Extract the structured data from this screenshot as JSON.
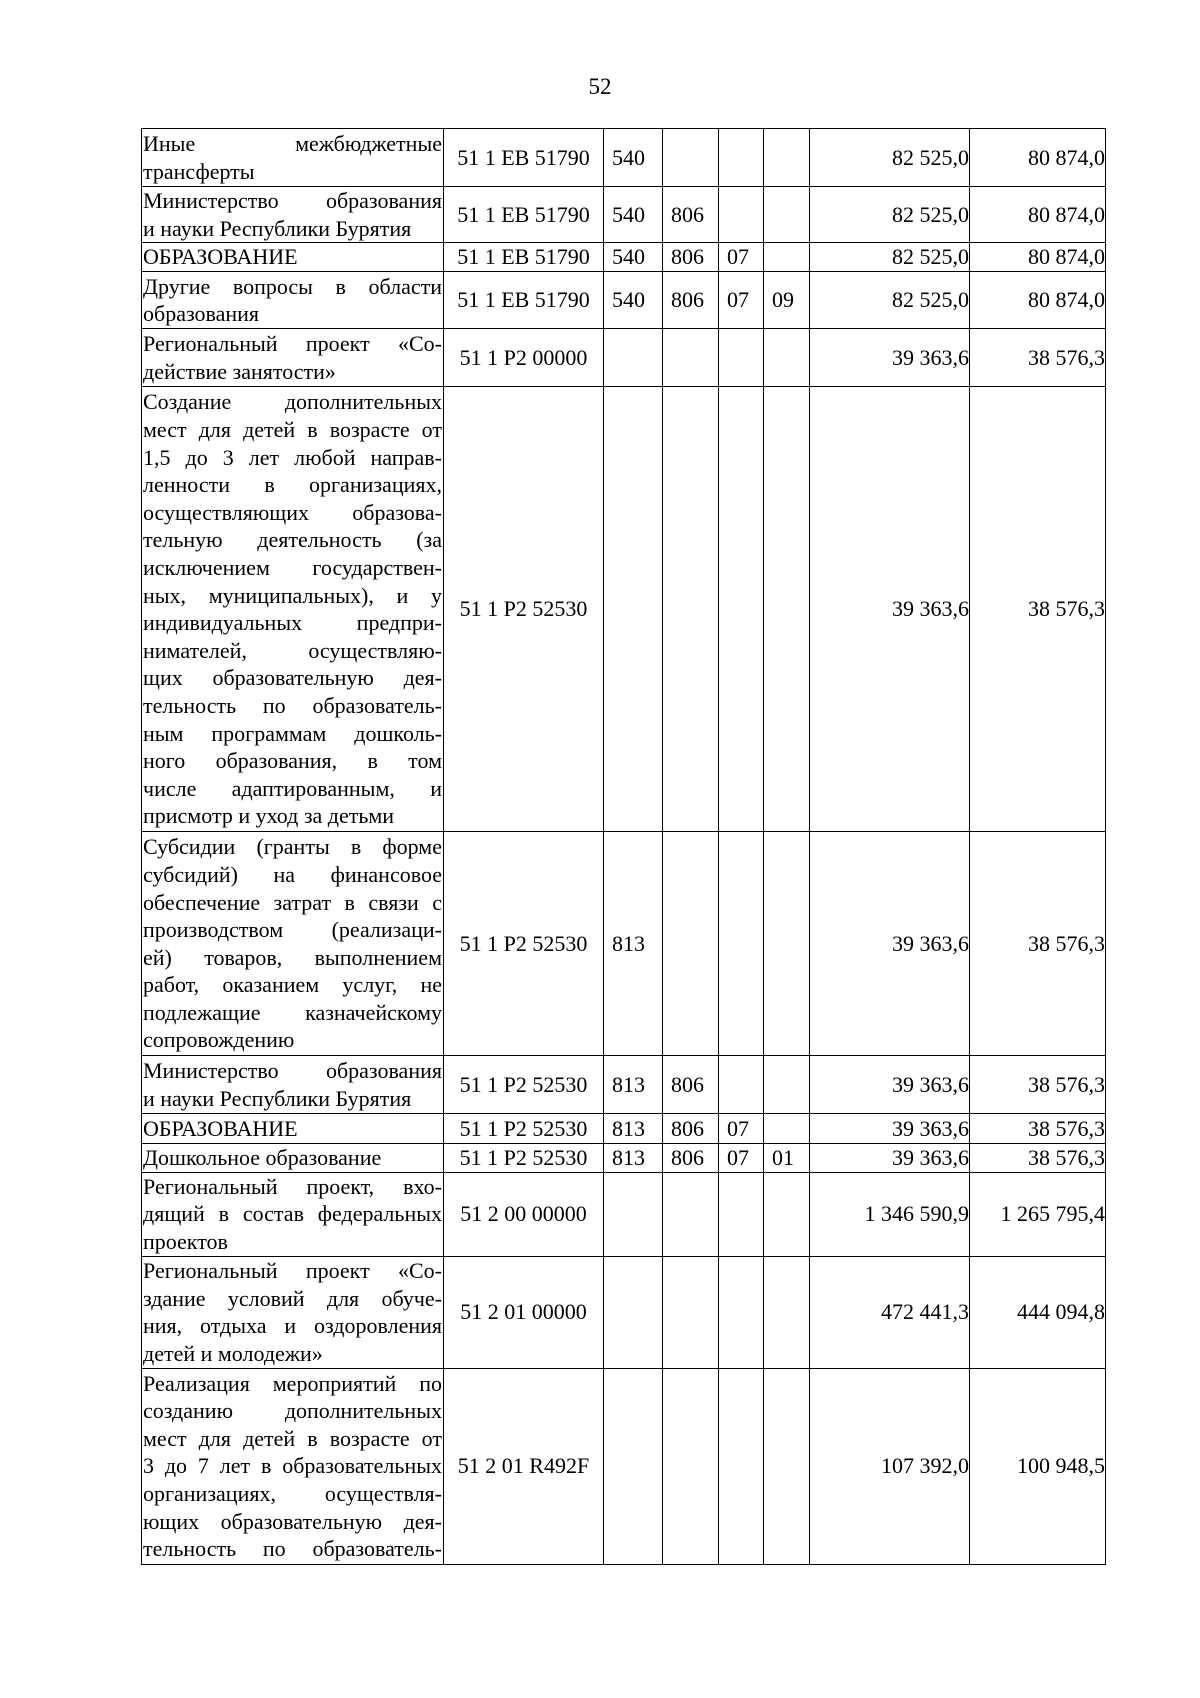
{
  "page_number": "52",
  "rows": [
    {
      "desc": [
        "Иные межбюджетные",
        "трансферты"
      ],
      "code": "51 1 EB 51790",
      "vr": "540",
      "grbs": "",
      "rz": "",
      "pr": "",
      "sum1": "82 525,0",
      "sum2": "80 874,0"
    },
    {
      "desc": [
        "Министерство образования",
        "и науки Республики Бурятия"
      ],
      "code": "51 1 EB 51790",
      "vr": "540",
      "grbs": "806",
      "rz": "",
      "pr": "",
      "sum1": "82 525,0",
      "sum2": "80 874,0"
    },
    {
      "desc": [
        "ОБРАЗОВАНИЕ"
      ],
      "code": "51 1 EB 51790",
      "vr": "540",
      "grbs": "806",
      "rz": "07",
      "pr": "",
      "sum1": "82 525,0",
      "sum2": "80 874,0"
    },
    {
      "desc": [
        "Другие вопросы в области",
        "образования"
      ],
      "code": "51 1 EB 51790",
      "vr": "540",
      "grbs": "806",
      "rz": "07",
      "pr": "09",
      "sum1": "82 525,0",
      "sum2": "80 874,0"
    },
    {
      "desc": [
        "Региональный проект «Со-",
        "действие занятости»"
      ],
      "code": "51 1 P2 00000",
      "vr": "",
      "grbs": "",
      "rz": "",
      "pr": "",
      "sum1": "39 363,6",
      "sum2": "38 576,3"
    },
    {
      "desc": [
        "Создание дополнительных",
        "мест для детей в возрасте от",
        "1,5 до 3 лет любой направ-",
        "ленности в организациях,",
        "осуществляющих образова-",
        "тельную деятельность (за",
        "исключением государствен-",
        "ных, муниципальных), и у",
        "индивидуальных предпри-",
        "нимателей, осуществляю-",
        "щих образовательную дея-",
        "тельность по образователь-",
        "ным программам дошколь-",
        "ного образования, в том",
        "числе адаптированным, и",
        "присмотр и уход за детьми"
      ],
      "code": "51 1 P2 52530",
      "vr": "",
      "grbs": "",
      "rz": "",
      "pr": "",
      "sum1": "39 363,6",
      "sum2": "38 576,3"
    },
    {
      "desc": [
        "Субсидии (гранты в форме",
        "субсидий) на финансовое",
        "обеспечение затрат в связи с",
        "производством (реализаци-",
        "ей) товаров, выполнением",
        "работ, оказанием услуг, не",
        "подлежащие казначейскому",
        "сопровождению"
      ],
      "code": "51 1 P2 52530",
      "vr": "813",
      "grbs": "",
      "rz": "",
      "pr": "",
      "sum1": "39 363,6",
      "sum2": "38 576,3"
    },
    {
      "desc": [
        "Министерство образования",
        "и науки Республики Бурятия"
      ],
      "code": "51 1 P2 52530",
      "vr": "813",
      "grbs": "806",
      "rz": "",
      "pr": "",
      "sum1": "39 363,6",
      "sum2": "38 576,3"
    },
    {
      "desc": [
        "ОБРАЗОВАНИЕ"
      ],
      "code": "51 1 P2 52530",
      "vr": "813",
      "grbs": "806",
      "rz": "07",
      "pr": "",
      "sum1": "39 363,6",
      "sum2": "38 576,3"
    },
    {
      "desc": [
        "Дошкольное образование"
      ],
      "code": "51 1 P2 52530",
      "vr": "813",
      "grbs": "806",
      "rz": "07",
      "pr": "01",
      "sum1": "39 363,6",
      "sum2": "38 576,3"
    },
    {
      "desc": [
        "Региональный проект, вхо-",
        "дящий в состав федеральных",
        "проектов"
      ],
      "code": "51 2 00 00000",
      "vr": "",
      "grbs": "",
      "rz": "",
      "pr": "",
      "sum1": "1 346 590,9",
      "sum2": "1 265 795,4"
    },
    {
      "desc": [
        "Региональный проект «Со-",
        "здание условий для обуче-",
        "ния, отдыха и оздоровления",
        "детей и молодежи»"
      ],
      "code": "51 2 01 00000",
      "vr": "",
      "grbs": "",
      "rz": "",
      "pr": "",
      "sum1": "472 441,3",
      "sum2": "444 094,8"
    },
    {
      "desc": [
        "Реализация мероприятий по",
        "созданию дополнительных",
        "мест для детей в возрасте от",
        "3 до 7 лет в образовательных",
        "организациях, осуществля-",
        "ющих образовательную дея-",
        "тельность по образователь-"
      ],
      "code": "51 2 01 R492F",
      "vr": "",
      "grbs": "",
      "rz": "",
      "pr": "",
      "sum1": "107 392,0",
      "sum2": "100 948,5"
    }
  ]
}
